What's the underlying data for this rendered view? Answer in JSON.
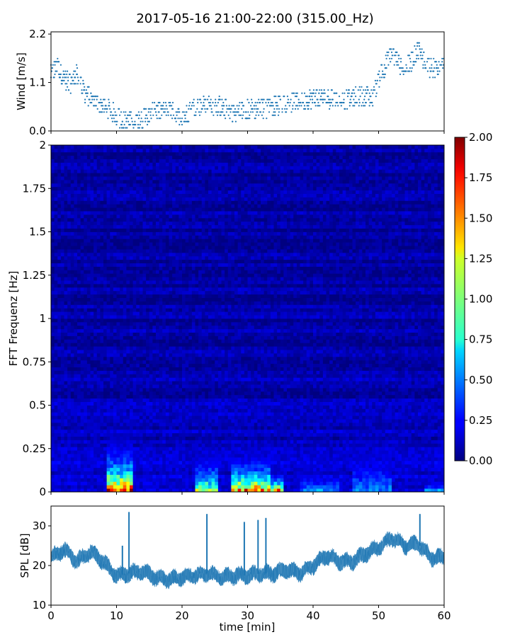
{
  "title": "2017-05-16 21:00-22:00 (315.00_Hz)",
  "chart_data": [
    {
      "type": "scatter",
      "panel": "wind",
      "ylabel": "Wind [m/s]",
      "xlim": [
        0,
        60
      ],
      "ylim": [
        0,
        2.25
      ],
      "yticks": [
        "0.0",
        "1.1",
        "2.2"
      ],
      "series_color": "#1f77b4",
      "profile_x": [
        0,
        1,
        2,
        3,
        4,
        5,
        6,
        7,
        8,
        10,
        12,
        14,
        16,
        18,
        20,
        22,
        24,
        26,
        28,
        30,
        32,
        34,
        36,
        38,
        40,
        42,
        44,
        46,
        48,
        49,
        50,
        52,
        54,
        56,
        58,
        60
      ],
      "profile_y": [
        1.3,
        1.45,
        1.2,
        1.1,
        1.3,
        0.9,
        0.75,
        0.65,
        0.55,
        0.35,
        0.2,
        0.3,
        0.45,
        0.45,
        0.3,
        0.55,
        0.6,
        0.55,
        0.4,
        0.5,
        0.5,
        0.55,
        0.65,
        0.65,
        0.75,
        0.75,
        0.7,
        0.75,
        0.8,
        0.7,
        1.2,
        1.75,
        1.35,
        1.85,
        1.4,
        1.5
      ],
      "spread": 0.22
    },
    {
      "type": "heatmap",
      "panel": "spectrogram",
      "ylabel": "FFT Frequenz [Hz]",
      "xlim": [
        0,
        60
      ],
      "ylim": [
        0,
        2
      ],
      "yticks": [
        "0",
        "0.25",
        "0.5",
        "0.75",
        "1",
        "1.25",
        "1.5",
        "1.75",
        "2"
      ],
      "colormap": "jet",
      "colorbar": {
        "range": [
          0,
          2
        ],
        "ticks": [
          "0.00",
          "0.25",
          "0.50",
          "0.75",
          "1.00",
          "1.25",
          "1.50",
          "1.75",
          "2.00"
        ]
      },
      "hot_spots": [
        {
          "t": [
            8.5,
            12.5
          ],
          "f_max": 0.38,
          "peak": 2.0
        },
        {
          "t": [
            22,
            25.5
          ],
          "f_max": 0.32,
          "peak": 1.4
        },
        {
          "t": [
            27.5,
            33.5
          ],
          "f_max": 0.28,
          "peak": 2.0
        },
        {
          "t": [
            33.5,
            35.5
          ],
          "f_max": 0.15,
          "peak": 2.0
        },
        {
          "t": [
            38,
            44
          ],
          "f_max": 0.22,
          "peak": 0.7
        },
        {
          "t": [
            46,
            52
          ],
          "f_max": 0.52,
          "peak": 0.6
        },
        {
          "t": [
            57,
            60
          ],
          "f_max": 0.1,
          "peak": 0.9
        }
      ]
    },
    {
      "type": "area",
      "panel": "spl",
      "ylabel": "SPL [dB]",
      "xlabel": "time [min]",
      "xlim": [
        0,
        60
      ],
      "ylim": [
        10,
        35
      ],
      "yticks": [
        "10",
        "20",
        "30"
      ],
      "xticks": [
        "0",
        "10",
        "20",
        "30",
        "40",
        "50",
        "60"
      ],
      "series_color": "#1f77b4",
      "profile_x": [
        0,
        2,
        4,
        6,
        8,
        9,
        10,
        12,
        14,
        16,
        18,
        20,
        22,
        24,
        26,
        28,
        30,
        32,
        34,
        36,
        38,
        40,
        42,
        44,
        46,
        48,
        50,
        52,
        54,
        56,
        58,
        60
      ],
      "profile_y": [
        22,
        24,
        21,
        23.5,
        21,
        19,
        17.5,
        18,
        18.5,
        17,
        16.5,
        17,
        17.5,
        18,
        17,
        17.5,
        17.5,
        18,
        18,
        19,
        18,
        20,
        22.5,
        21,
        21,
        23,
        24.5,
        27,
        25,
        25.5,
        22,
        22
      ],
      "band_width": 3.2,
      "spikes": [
        {
          "t": 10.9,
          "value": 25
        },
        {
          "t": 11.9,
          "value": 33.5
        },
        {
          "t": 23.8,
          "value": 33
        },
        {
          "t": 29.5,
          "value": 31
        },
        {
          "t": 31.6,
          "value": 31.5
        },
        {
          "t": 32.8,
          "value": 32
        },
        {
          "t": 56.3,
          "value": 33
        }
      ]
    }
  ]
}
